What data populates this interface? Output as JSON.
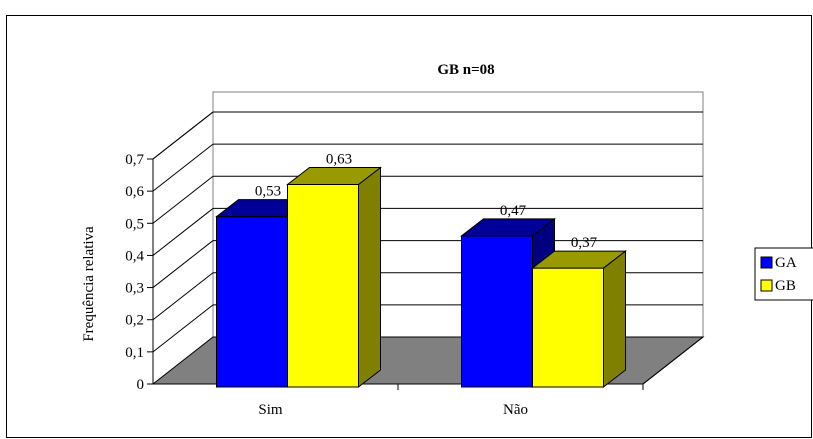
{
  "chart_data": {
    "type": "bar",
    "title": "GB n=08",
    "xlabel": "",
    "ylabel": "Frequência relativa",
    "categories": [
      "Sim",
      "Não"
    ],
    "series": [
      {
        "name": "GA",
        "values": [
          0.53,
          0.47
        ],
        "labels": [
          "0,53",
          "0,47"
        ]
      },
      {
        "name": "GB",
        "values": [
          0.63,
          0.37
        ],
        "labels": [
          "0,63",
          "0,37"
        ]
      }
    ],
    "ylim": [
      0,
      0.7
    ],
    "yticks": [
      "0",
      "0,1",
      "0,2",
      "0,3",
      "0,4",
      "0,5",
      "0,6",
      "0,7"
    ],
    "grid": true,
    "legend": "right",
    "style": "3d-clustered-column"
  },
  "colors": {
    "GA": "#0000ff",
    "GB": "#ffff00",
    "floor": "#808080"
  }
}
